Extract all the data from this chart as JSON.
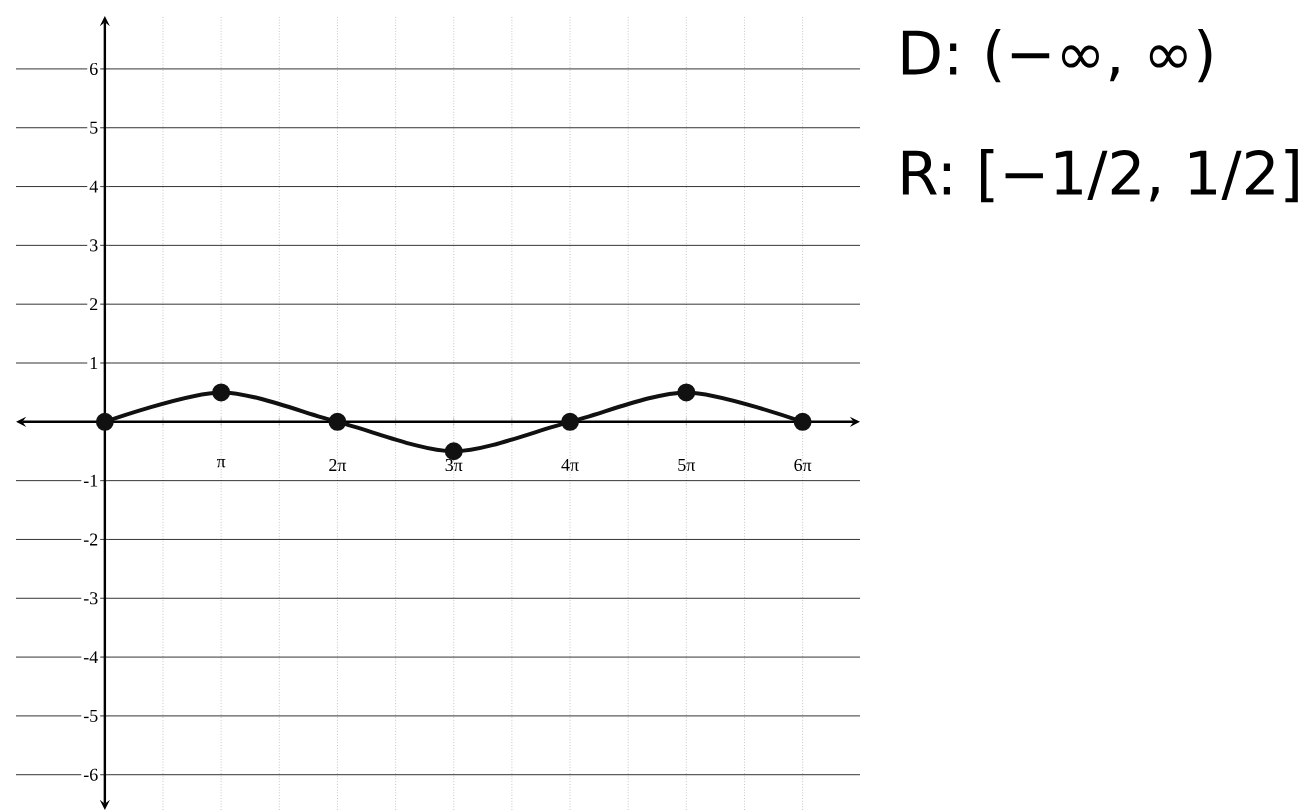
{
  "chart_data": {
    "type": "line",
    "x": [
      0,
      3.1416,
      6.2832,
      9.4248,
      12.5664,
      15.708,
      18.8496
    ],
    "values": [
      0,
      0.5,
      0,
      -0.5,
      0,
      0.5,
      0
    ],
    "color": "#111111",
    "marker": "circle",
    "line_style": "solid",
    "grid": true,
    "xlim": [
      -2.4,
      20.4
    ],
    "ylim": [
      -6.6,
      6.9
    ],
    "xticks": [
      {
        "value": 1.5708,
        "label": null
      },
      {
        "value": 3.1416,
        "label": "π"
      },
      {
        "value": 4.7124,
        "label": null
      },
      {
        "value": 6.2832,
        "label": "2π"
      },
      {
        "value": 7.854,
        "label": null
      },
      {
        "value": 9.4248,
        "label": "3π"
      },
      {
        "value": 10.9956,
        "label": null
      },
      {
        "value": 12.5664,
        "label": "4π"
      },
      {
        "value": 14.1372,
        "label": null
      },
      {
        "value": 15.708,
        "label": "5π"
      },
      {
        "value": 17.2788,
        "label": null
      },
      {
        "value": 18.8496,
        "label": "6π"
      }
    ],
    "yticks": [
      -6,
      -5,
      -4,
      -3,
      -2,
      -1,
      1,
      2,
      3,
      4,
      5,
      6
    ],
    "annotations": [
      "D: (−∞, ∞)",
      "R: [−1/2, 1/2]"
    ]
  }
}
